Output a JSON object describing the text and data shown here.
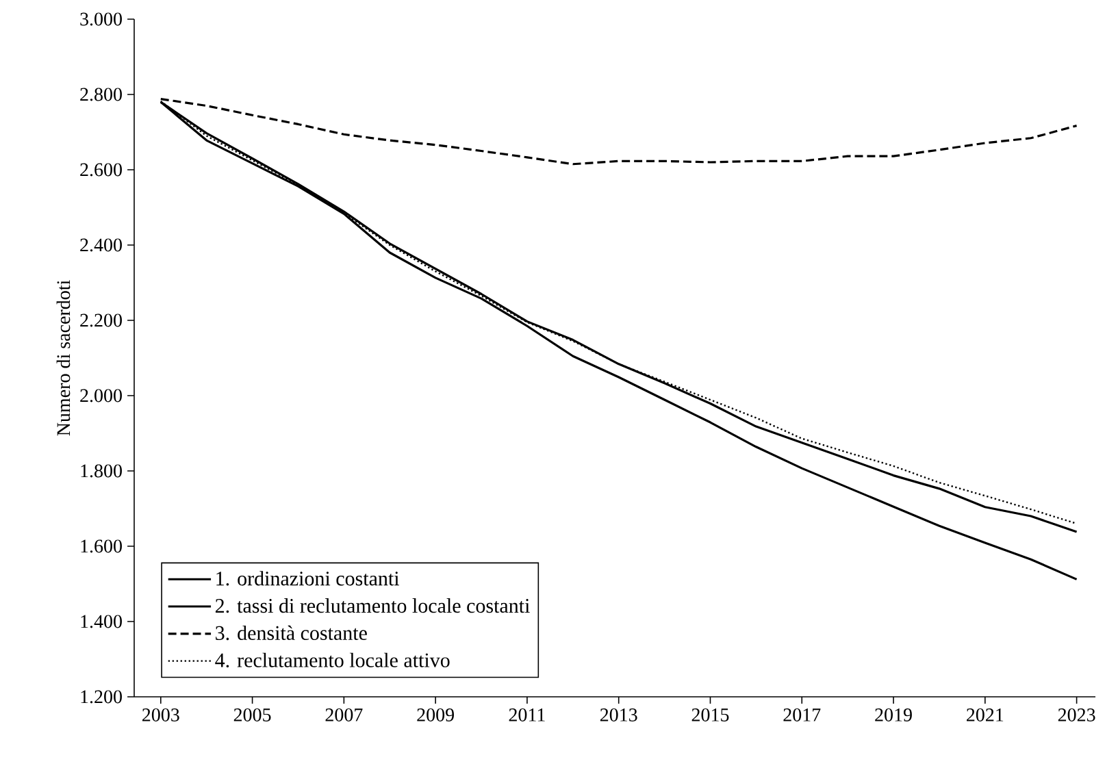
{
  "chart_data": {
    "type": "line",
    "ylabel": "Numero di sacerdoti",
    "x": [
      2003,
      2004,
      2005,
      2006,
      2007,
      2008,
      2009,
      2010,
      2011,
      2012,
      2013,
      2014,
      2015,
      2016,
      2017,
      2018,
      2019,
      2020,
      2021,
      2022,
      2023
    ],
    "series": [
      {
        "name": "1. ordinazioni costanti",
        "color": "#000000",
        "line_style": "solid",
        "values": [
          2780,
          2678,
          2617,
          2556,
          2483,
          2380,
          2313,
          2258,
          2185,
          2105,
          2049,
          1989,
          1929,
          1864,
          1807,
          1756,
          1705,
          1654,
          1609,
          1565,
          1512
        ]
      },
      {
        "name": "2. tassi di reclutamento locale costanti",
        "color": "#000000",
        "line_style": "solid",
        "values": [
          2780,
          2697,
          2630,
          2562,
          2489,
          2404,
          2337,
          2270,
          2197,
          2148,
          2084,
          2033,
          1979,
          1918,
          1875,
          1832,
          1788,
          1753,
          1704,
          1680,
          1638
        ]
      },
      {
        "name": "3. densità costante",
        "color": "#000000",
        "line_style": "dashed",
        "values": [
          2788,
          2770,
          2745,
          2721,
          2694,
          2678,
          2666,
          2650,
          2633,
          2615,
          2623,
          2623,
          2620,
          2623,
          2623,
          2636,
          2636,
          2653,
          2671,
          2684,
          2717
        ]
      },
      {
        "name": "4. reclutamento locale attivo",
        "color": "#000000",
        "line_style": "dotted",
        "values": [
          2782,
          2690,
          2625,
          2560,
          2485,
          2400,
          2330,
          2265,
          2195,
          2145,
          2084,
          2037,
          1989,
          1941,
          1886,
          1849,
          1813,
          1769,
          1734,
          1698,
          1660
        ]
      }
    ],
    "xlim": [
      2002.42,
      2023.41
    ],
    "ylim": [
      1200,
      3000
    ],
    "xticks": [
      2003,
      2005,
      2007,
      2009,
      2011,
      2013,
      2015,
      2017,
      2019,
      2021,
      2023
    ],
    "yticks": [
      {
        "value": 1200,
        "label": "1.200"
      },
      {
        "value": 1400,
        "label": "1.400"
      },
      {
        "value": 1600,
        "label": "1.600"
      },
      {
        "value": 1800,
        "label": "1.800"
      },
      {
        "value": 2000,
        "label": "2.000"
      },
      {
        "value": 2200,
        "label": "2.200"
      },
      {
        "value": 2400,
        "label": "2.400"
      },
      {
        "value": 2600,
        "label": "2.600"
      },
      {
        "value": 2800,
        "label": "2.800"
      },
      {
        "value": 3000,
        "label": "3.000"
      }
    ],
    "grid": false,
    "legend": "bottom left",
    "marker": "none"
  }
}
